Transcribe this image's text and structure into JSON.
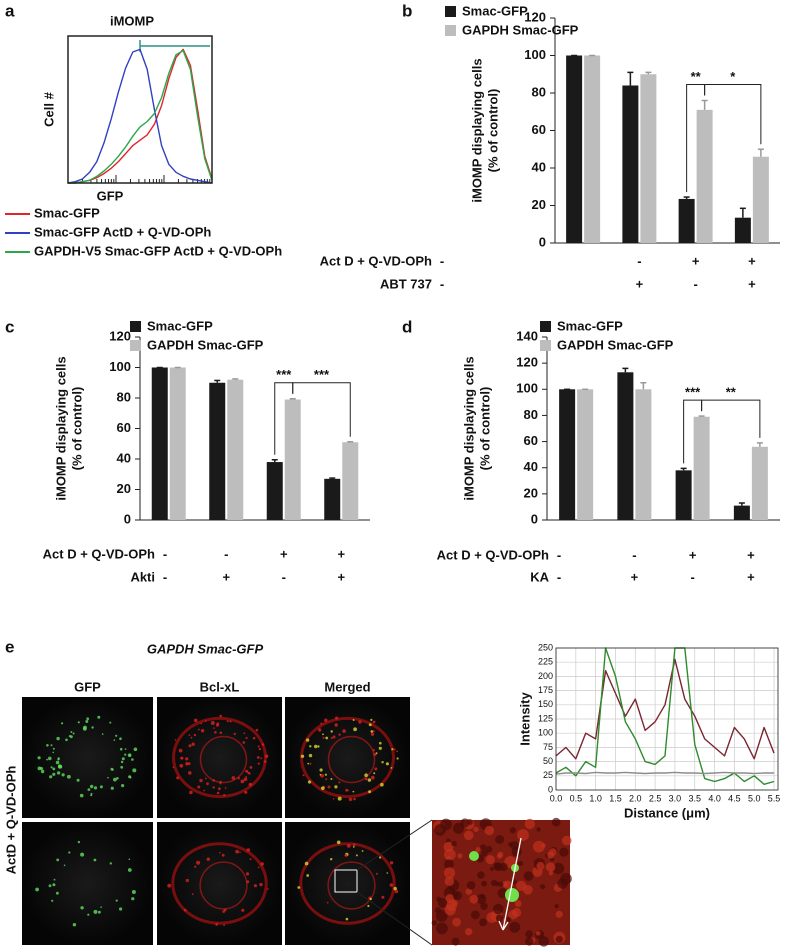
{
  "chart_data": [
    {
      "panel": "a",
      "type": "line",
      "title": "iMOMP",
      "xlabel": "GFP",
      "ylabel": "Cell #",
      "x": [
        0,
        1,
        2,
        3,
        4,
        5,
        6,
        7,
        8,
        9,
        10,
        11,
        12,
        13,
        14,
        15,
        16,
        17,
        18,
        19,
        20
      ],
      "xlim": [
        0,
        20
      ],
      "ylim": [
        0,
        110
      ],
      "series": [
        {
          "name": "Smac-GFP",
          "color": "#e0262b",
          "values": [
            0,
            0,
            1,
            2,
            4,
            7,
            11,
            16,
            22,
            28,
            32,
            36,
            44,
            58,
            78,
            94,
            100,
            88,
            55,
            20,
            3
          ]
        },
        {
          "name": "Smac-GFP ActD + Q-VD-OPh",
          "color": "#3040c0",
          "values": [
            0,
            1,
            3,
            8,
            16,
            30,
            48,
            68,
            86,
            98,
            100,
            85,
            55,
            28,
            14,
            8,
            5,
            3,
            2,
            1,
            0
          ]
        },
        {
          "name": "GAPDH-V5 Smac-GFP ActD + Q-VD-OPh",
          "color": "#2aa84a",
          "values": [
            0,
            0,
            1,
            2,
            5,
            9,
            14,
            20,
            27,
            35,
            42,
            46,
            52,
            64,
            82,
            96,
            99,
            85,
            50,
            18,
            2
          ]
        }
      ]
    },
    {
      "panel": "b",
      "type": "bar",
      "ylabel": [
        "iMOMP displaying cells",
        "(% of control)"
      ],
      "ylim": [
        0,
        120
      ],
      "yticks": [
        0,
        20,
        40,
        60,
        80,
        100,
        120
      ],
      "series": [
        {
          "name": "Smac-GFP",
          "color": "#1a1a1a",
          "values": [
            100,
            84,
            23.5,
            13.5
          ],
          "errors": [
            0,
            7,
            1,
            5
          ]
        },
        {
          "name": "GAPDH Smac-GFP",
          "color": "#bdbdbd",
          "values": [
            100,
            90,
            71,
            46
          ],
          "errors": [
            0,
            1,
            5,
            4
          ]
        }
      ],
      "conditions": [
        {
          "name": "Act D + Q-VD-OPh",
          "signs": [
            "-",
            "-",
            "+",
            "+"
          ]
        },
        {
          "name": "ABT 737",
          "signs": [
            "-",
            "+",
            "-",
            "+"
          ]
        }
      ],
      "annotations": [
        "**",
        "*"
      ]
    },
    {
      "panel": "c",
      "type": "bar",
      "ylabel": [
        "iMOMP displaying cells",
        "(% of control)"
      ],
      "ylim": [
        0,
        120
      ],
      "yticks": [
        0,
        20,
        40,
        60,
        80,
        100,
        120
      ],
      "series": [
        {
          "name": "Smac-GFP",
          "color": "#1a1a1a",
          "values": [
            100,
            90,
            38,
            27
          ],
          "errors": [
            0,
            1.5,
            1.5,
            0.5
          ]
        },
        {
          "name": "GAPDH Smac-GFP",
          "color": "#bdbdbd",
          "values": [
            100,
            92,
            79,
            51
          ],
          "errors": [
            0,
            0.5,
            0.5,
            0.3
          ]
        }
      ],
      "conditions": [
        {
          "name": "Act D + Q-VD-OPh",
          "signs": [
            "-",
            "-",
            "+",
            "+"
          ]
        },
        {
          "name": "Akti",
          "signs": [
            "-",
            "+",
            "-",
            "+"
          ]
        }
      ],
      "annotations": [
        "***",
        "***"
      ]
    },
    {
      "panel": "d",
      "type": "bar",
      "ylabel": [
        "iMOMP displaying cells",
        "(% of control)"
      ],
      "ylim": [
        0,
        140
      ],
      "yticks": [
        0,
        20,
        40,
        60,
        80,
        100,
        120,
        140
      ],
      "series": [
        {
          "name": "Smac-GFP",
          "color": "#1a1a1a",
          "values": [
            100,
            113,
            38,
            11
          ],
          "errors": [
            0,
            3,
            1.5,
            2
          ]
        },
        {
          "name": "GAPDH Smac-GFP",
          "color": "#bdbdbd",
          "values": [
            100,
            100,
            79,
            56
          ],
          "errors": [
            0,
            5,
            0.5,
            3
          ]
        }
      ],
      "conditions": [
        {
          "name": "Act D + Q-VD-OPh",
          "signs": [
            "-",
            "-",
            "+",
            "+"
          ]
        },
        {
          "name": "KA",
          "signs": [
            "-",
            "+",
            "-",
            "+"
          ]
        }
      ],
      "annotations": [
        "***",
        "**"
      ]
    },
    {
      "panel": "e",
      "type": "line",
      "title": "GAPDH Smac-GFP",
      "columns": [
        "GFP",
        "Bcl-xL",
        "Merged"
      ],
      "row_label": "ActD + Q-VD-OPh",
      "xlabel": "Distance (μm)",
      "ylabel": "Intensity",
      "grid": true,
      "x": [
        0,
        0.25,
        0.5,
        0.75,
        1,
        1.25,
        1.5,
        1.75,
        2,
        2.25,
        2.5,
        2.75,
        3,
        3.25,
        3.5,
        3.75,
        4,
        4.25,
        4.5,
        4.75,
        5,
        5.25,
        5.5
      ],
      "xlim": [
        0,
        5.6
      ],
      "ylim": [
        0,
        250
      ],
      "xticks": [
        {
          "value": 0,
          "label": "0.0"
        },
        0.5,
        {
          "value": 1,
          "label": "1.0"
        },
        1.5,
        {
          "value": 2,
          "label": "2.0"
        },
        2.5,
        {
          "value": 3,
          "label": "3.0"
        },
        3.5,
        {
          "value": 4,
          "label": "4.0"
        },
        4.5,
        {
          "value": 5,
          "label": "5.0"
        },
        5.5
      ],
      "yticks": [
        0,
        25,
        50,
        75,
        100,
        125,
        150,
        175,
        200,
        225,
        250
      ],
      "series": [
        {
          "color": "#7a2630",
          "values": [
            60,
            75,
            55,
            100,
            90,
            210,
            170,
            130,
            160,
            105,
            120,
            150,
            230,
            160,
            130,
            90,
            75,
            60,
            110,
            90,
            55,
            110,
            65
          ]
        },
        {
          "color": "#2e8b2e",
          "values": [
            30,
            40,
            25,
            50,
            40,
            250,
            200,
            120,
            90,
            50,
            45,
            60,
            250,
            250,
            80,
            20,
            15,
            20,
            30,
            15,
            25,
            10,
            15
          ]
        },
        {
          "color": "#8c8c8c",
          "values": [
            28,
            30,
            30,
            29,
            31,
            30,
            30,
            31,
            30,
            29,
            30,
            30,
            31,
            30,
            30,
            29,
            30,
            31,
            30,
            30,
            29,
            30,
            30
          ]
        }
      ]
    }
  ]
}
